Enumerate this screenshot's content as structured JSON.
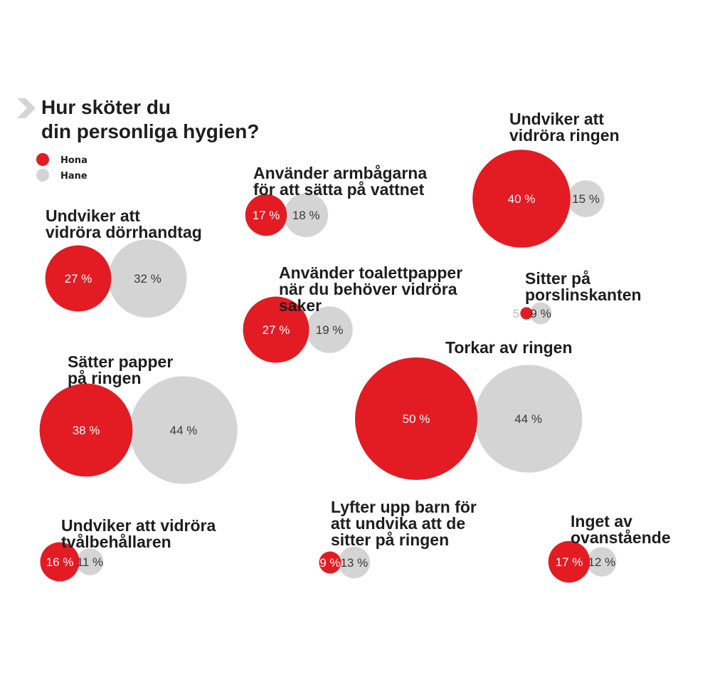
{
  "chart_data": {
    "type": "bubble",
    "title": [
      "Hur sköter du",
      "din personliga hygien?"
    ],
    "legend": [
      {
        "name": "Hona",
        "color": "#e31b23"
      },
      {
        "name": "Hane",
        "color": "#d4d4d4"
      }
    ],
    "items": [
      {
        "label": [
          "Undviker att",
          "vidröra ringen"
        ],
        "hona": 40,
        "hane": 15,
        "hona_text": "40 %",
        "hane_text": "15 %"
      },
      {
        "label": [
          "Använder armbågarna",
          "för att sätta på vattnet"
        ],
        "hona": 17,
        "hane": 18,
        "hona_text": "17 %",
        "hane_text": "18 %"
      },
      {
        "label": [
          "Undviker att",
          "vidröra dörrhandtag"
        ],
        "hona": 27,
        "hane": 32,
        "hona_text": "27 %",
        "hane_text": "32 %"
      },
      {
        "label": [
          "Använder toalettpapper",
          "när du behöver vidröra",
          "saker"
        ],
        "hona": 27,
        "hane": 19,
        "hona_text": "27 %",
        "hane_text": "19 %"
      },
      {
        "label": [
          "Sitter på",
          "porslinskanten"
        ],
        "hona": 5,
        "hane": 9,
        "hona_text": "5",
        "hane_text": "9 %"
      },
      {
        "label": [
          "Sätter papper",
          "på ringen"
        ],
        "hona": 38,
        "hane": 44,
        "hona_text": "38 %",
        "hane_text": "44 %"
      },
      {
        "label": [
          "Torkar av ringen"
        ],
        "hona": 50,
        "hane": 44,
        "hona_text": "50 %",
        "hane_text": "44 %"
      },
      {
        "label": [
          "Undviker att vidröra",
          "tvålbehållaren"
        ],
        "hona": 16,
        "hane": 11,
        "hona_text": "16 %",
        "hane_text": "11 %"
      },
      {
        "label": [
          "Lyfter upp barn för",
          "att undvika att de",
          "sitter på ringen"
        ],
        "hona": 9,
        "hane": 13,
        "hona_text": "9 %",
        "hane_text": "13 %"
      },
      {
        "label": [
          "Inget av",
          "ovanstående"
        ],
        "hona": 17,
        "hane": 12,
        "hona_text": "17 %",
        "hane_text": "12 %"
      }
    ]
  }
}
